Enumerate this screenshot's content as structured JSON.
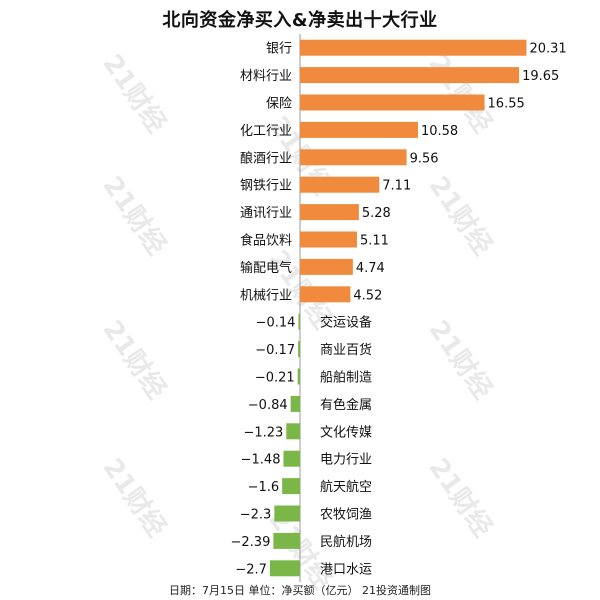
{
  "title": "北向资金净买入&净卖出十大行业",
  "footer": "日期：7月15日 单位：净买额（亿元） 21投资通制图",
  "watermark": "21财经",
  "colors": {
    "positive": "#f08a3c",
    "negative": "#7ab648",
    "axis": "#9a9a9a"
  },
  "chart_data": {
    "type": "bar",
    "orientation": "horizontal",
    "title": "北向资金净买入&净卖出十大行业",
    "categories": [
      "银行",
      "材料行业",
      "保险",
      "化工行业",
      "酿酒行业",
      "钢铁行业",
      "通讯行业",
      "食品饮料",
      "输配电气",
      "机械行业",
      "交运设备",
      "商业百货",
      "船舶制造",
      "有色金属",
      "文化传媒",
      "电力行业",
      "航天航空",
      "农牧饲渔",
      "民航机场",
      "港口水运"
    ],
    "values": [
      20.31,
      19.65,
      16.55,
      10.58,
      9.56,
      7.11,
      5.28,
      5.11,
      4.74,
      4.52,
      -0.14,
      -0.17,
      -0.21,
      -0.84,
      -1.23,
      -1.48,
      -1.6,
      -2.3,
      -2.39,
      -2.7
    ],
    "value_labels": [
      "20.31",
      "19.65",
      "16.55",
      "10.58",
      "9.56",
      "7.11",
      "5.28",
      "5.11",
      "4.74",
      "4.52",
      "−0.14",
      "−0.17",
      "−0.21",
      "−0.84",
      "−1.23",
      "−1.48",
      "−1.6",
      "−2.3",
      "−2.39",
      "−2.7"
    ],
    "unit": "亿元",
    "legend": "none",
    "grid": false
  }
}
